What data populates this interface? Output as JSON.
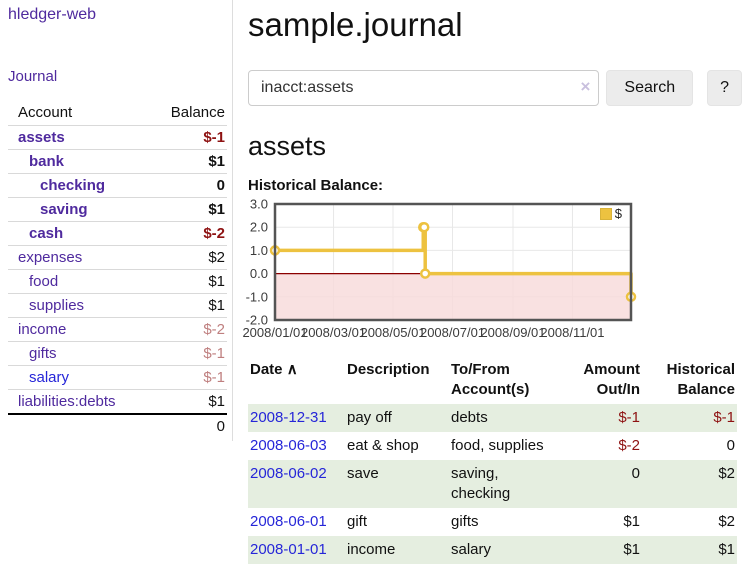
{
  "sidebar": {
    "brand": "hledger-web",
    "journal_link": "Journal",
    "table": {
      "account_header": "Account",
      "balance_header": "Balance",
      "rows": [
        {
          "account": "assets",
          "balance": "$-1"
        },
        {
          "account": "bank",
          "balance": "$1"
        },
        {
          "account": "checking",
          "balance": "0"
        },
        {
          "account": "saving",
          "balance": "$1"
        },
        {
          "account": "cash",
          "balance": "$-2"
        },
        {
          "account": "expenses",
          "balance": "$2"
        },
        {
          "account": "food",
          "balance": "$1"
        },
        {
          "account": "supplies",
          "balance": "$1"
        },
        {
          "account": "income",
          "balance": "$-2"
        },
        {
          "account": "gifts",
          "balance": "$-1"
        },
        {
          "account": "salary",
          "balance": "$-1"
        },
        {
          "account": "liabilities:debts",
          "balance": "$1"
        }
      ],
      "total": "0"
    }
  },
  "main": {
    "title": "sample.journal",
    "search": {
      "value": "inacct:assets",
      "clear_icon": "×",
      "button_label": "Search",
      "help_label": "?"
    },
    "section_title": "assets",
    "chart_label": "Historical Balance:"
  },
  "chart_data": {
    "type": "line",
    "style": "step",
    "title": "Historical Balance",
    "series": [
      {
        "name": "$",
        "color": "#edc240",
        "points": [
          {
            "date": "2008-01-01",
            "value": 1
          },
          {
            "date": "2008-06-01",
            "value": 2
          },
          {
            "date": "2008-06-02",
            "value": 2
          },
          {
            "date": "2008-06-03",
            "value": 0
          },
          {
            "date": "2008-12-31",
            "value": -1
          }
        ]
      }
    ],
    "x_range": [
      "2008-01-01",
      "2008-12-31"
    ],
    "xticks": [
      "2008/01/01",
      "2008/03/01",
      "2008/05/01",
      "2008/07/01",
      "2008/09/01",
      "2008/11/01"
    ],
    "yticks": [
      3.0,
      2.0,
      1.0,
      0.0,
      -1.0,
      -2.0
    ],
    "ylim": [
      -2,
      3
    ],
    "grid": true,
    "legend_position": "top-right",
    "negative_region_color": "#f8dada",
    "zero_line_color": "#8b0000",
    "border_color": "#545454",
    "grid_color": "#e8e8e8"
  },
  "register": {
    "headers": {
      "date": "Date",
      "description": "Description",
      "accounts": "To/From Account(s)",
      "amount": "Amount Out/In",
      "balance": "Historical Balance"
    },
    "sort_icon": "∧",
    "rows": [
      {
        "date": "2008-12-31",
        "description": "pay off",
        "accounts": "debts",
        "amount": "$-1",
        "balance": "$-1"
      },
      {
        "date": "2008-06-03",
        "description": "eat & shop",
        "accounts": "food, supplies",
        "amount": "$-2",
        "balance": "0"
      },
      {
        "date": "2008-06-02",
        "description": "save",
        "accounts": "saving, checking",
        "amount": "0",
        "balance": "$2"
      },
      {
        "date": "2008-06-01",
        "description": "gift",
        "accounts": "gifts",
        "amount": "$1",
        "balance": "$2"
      },
      {
        "date": "2008-01-01",
        "description": "income",
        "accounts": "salary",
        "amount": "$1",
        "balance": "$1"
      }
    ]
  }
}
